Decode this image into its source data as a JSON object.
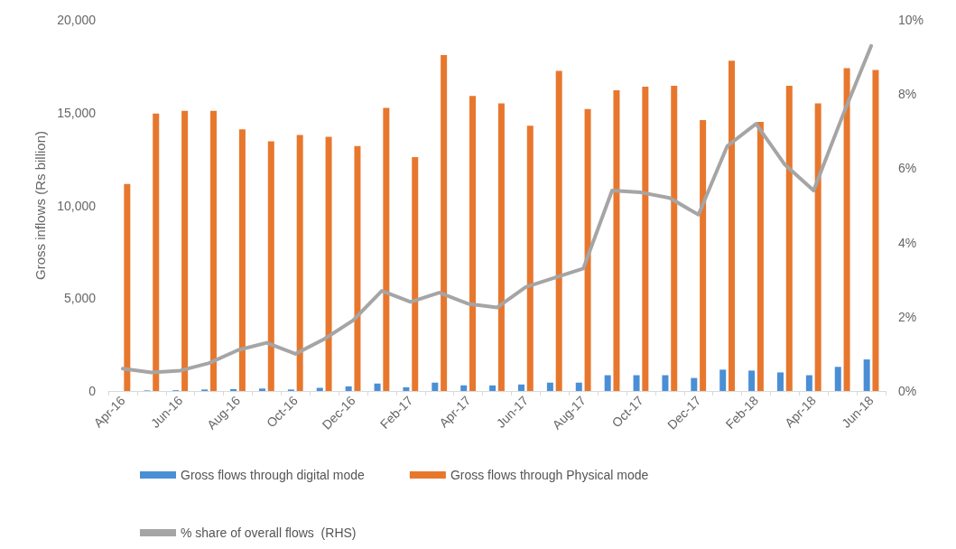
{
  "chart_data": {
    "type": "bar",
    "ylabel": "Gross inflows (Rs billion)",
    "categories": [
      "Apr-16",
      null,
      "Jun-16",
      null,
      "Aug-16",
      null,
      "Oct-16",
      null,
      "Dec-16",
      null,
      "Feb-17",
      null,
      "Apr-17",
      null,
      "Jun-17",
      null,
      "Aug-17",
      null,
      "Oct-17",
      null,
      "Dec-17",
      null,
      "Feb-18",
      null,
      "Apr-18",
      null,
      "Jun-18"
    ],
    "series": [
      {
        "name": "Gross flows through digital mode",
        "color": "#4a8fd6",
        "values": [
          null,
          30,
          40,
          80,
          100,
          130,
          80,
          170,
          250,
          400,
          200,
          450,
          300,
          300,
          350,
          450,
          450,
          850,
          850,
          850,
          700,
          1150,
          1100,
          1000,
          850,
          1300,
          1700
        ]
      },
      {
        "name": "Gross flows through Physical mode",
        "color": "#e8772e",
        "values": [
          11150,
          14950,
          15100,
          15100,
          14100,
          13450,
          13800,
          13700,
          13200,
          15250,
          12600,
          18100,
          15900,
          15500,
          14300,
          17250,
          15200,
          16200,
          16400,
          16450,
          14600,
          17800,
          14500,
          16450,
          15500,
          17400,
          17300
        ]
      },
      {
        "name": "% share of overall flows  (RHS)",
        "type": "line",
        "axis": "y2",
        "color": "#a5a5a5",
        "values": [
          0.6,
          0.5,
          0.55,
          0.75,
          1.1,
          1.3,
          1.0,
          1.4,
          1.9,
          2.7,
          2.4,
          2.65,
          2.35,
          2.25,
          2.8,
          3.05,
          3.3,
          5.4,
          5.35,
          5.2,
          4.75,
          6.6,
          7.2,
          6.1,
          5.4,
          7.4,
          9.3
        ]
      }
    ],
    "ylim": [
      0,
      20000
    ],
    "yticks": [
      0,
      {
        "value": 5000,
        "label": "5,000"
      },
      {
        "value": 10000,
        "label": "10,000"
      },
      {
        "value": 15000,
        "label": "15,000"
      },
      {
        "value": 20000,
        "label": "20,000"
      }
    ],
    "y2lim": [
      0,
      10
    ],
    "y2ticks": [
      {
        "value": 0,
        "label": "0%"
      },
      {
        "value": 2,
        "label": "2%"
      },
      {
        "value": 4,
        "label": "4%"
      },
      {
        "value": 6,
        "label": "6%"
      },
      {
        "value": 8,
        "label": "8%"
      },
      {
        "value": 10,
        "label": "10%"
      }
    ],
    "grid": false,
    "legend": "bottom",
    "marker": "none",
    "line_style": "solid"
  }
}
